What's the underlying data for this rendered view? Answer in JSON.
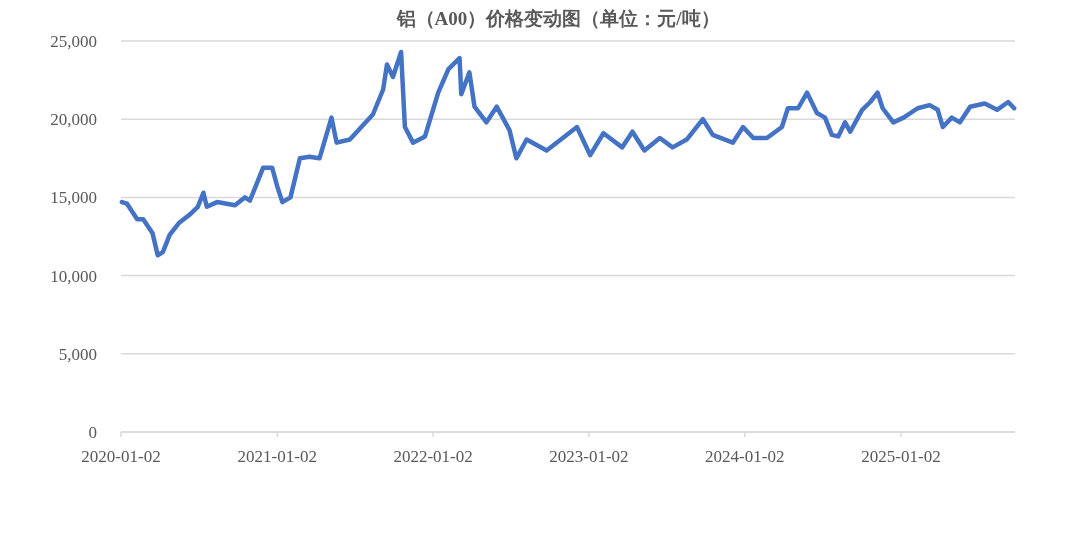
{
  "chart_data": {
    "type": "line",
    "title": "铝（A00）价格变动图（单位：元/吨）",
    "xlim": [
      "2020-01-02",
      "2025-09-26"
    ],
    "xticks": [
      "2020-01-02",
      "2021-01-02",
      "2022-01-02",
      "2023-01-02",
      "2024-01-02",
      "2025-01-02"
    ],
    "ylim": [
      0,
      25000
    ],
    "yticks": [
      {
        "value": 0,
        "label": "0"
      },
      {
        "value": 5000,
        "label": "5,000"
      },
      {
        "value": 10000,
        "label": "10,000"
      },
      {
        "value": 15000,
        "label": "15,000"
      },
      {
        "value": 20000,
        "label": "20,000"
      },
      {
        "value": 25000,
        "label": "25,000"
      }
    ],
    "grid": "y",
    "marker": "none",
    "line_style": "solid",
    "series": [
      {
        "color": "#4472c4",
        "x": [
          "2020-01-04",
          "2020-01-16",
          "2020-02-09",
          "2020-02-23",
          "2020-03-16",
          "2020-03-28",
          "2020-04-09",
          "2020-04-25",
          "2020-05-18",
          "2020-06-11",
          "2020-06-30",
          "2020-07-13",
          "2020-07-21",
          "2020-08-14",
          "2020-09-25",
          "2020-10-18",
          "2020-10-30",
          "2020-11-30",
          "2020-12-21",
          "2021-01-02",
          "2021-01-14",
          "2021-02-02",
          "2021-02-24",
          "2021-03-18",
          "2021-04-11",
          "2021-05-09",
          "2021-05-21",
          "2021-06-21",
          "2021-08-14",
          "2021-09-07",
          "2021-09-16",
          "2021-09-30",
          "2021-10-19",
          "2021-10-28",
          "2021-11-16",
          "2021-12-14",
          "2022-01-14",
          "2022-02-07",
          "2022-03-05",
          "2022-03-09",
          "2022-03-28",
          "2022-04-09",
          "2022-05-07",
          "2022-05-31",
          "2022-06-30",
          "2022-07-16",
          "2022-08-09",
          "2022-09-25",
          "2022-12-05",
          "2023-01-05",
          "2023-02-05",
          "2023-03-21",
          "2023-04-14",
          "2023-05-12",
          "2023-06-17",
          "2023-07-17",
          "2023-08-19",
          "2023-09-26",
          "2023-10-19",
          "2023-12-05",
          "2023-12-29",
          "2024-01-22",
          "2024-02-23",
          "2024-03-29",
          "2024-04-12",
          "2024-05-06",
          "2024-05-27",
          "2024-06-19",
          "2024-07-08",
          "2024-07-24",
          "2024-08-08",
          "2024-08-24",
          "2024-09-05",
          "2024-10-03",
          "2024-10-22",
          "2024-11-08",
          "2024-11-20",
          "2024-12-15",
          "2025-01-08",
          "2025-02-10",
          "2025-03-10",
          "2025-03-29",
          "2025-04-10",
          "2025-05-01",
          "2025-05-20",
          "2025-06-13",
          "2025-07-17",
          "2025-08-15",
          "2025-09-10",
          "2025-09-24"
        ],
        "values": [
          14700,
          14600,
          13600,
          13600,
          12700,
          11300,
          11500,
          12600,
          13400,
          13900,
          14400,
          15300,
          14400,
          14700,
          14500,
          15000,
          14800,
          16900,
          16900,
          15700,
          14700,
          15000,
          17500,
          17600,
          17500,
          20100,
          18500,
          18700,
          20300,
          21900,
          23500,
          22700,
          24300,
          19500,
          18500,
          18900,
          21700,
          23200,
          23900,
          21600,
          23000,
          20800,
          19800,
          20800,
          19300,
          17500,
          18700,
          18000,
          19500,
          17700,
          19100,
          18200,
          19200,
          18000,
          18800,
          18200,
          18700,
          20000,
          19000,
          18500,
          19500,
          18800,
          18800,
          19500,
          20700,
          20700,
          21700,
          20400,
          20100,
          19000,
          18900,
          19800,
          19200,
          20600,
          21100,
          21700,
          20700,
          19800,
          20100,
          20700,
          20900,
          20600,
          19500,
          20100,
          19800,
          20800,
          21000,
          20600,
          21100,
          20700
        ]
      }
    ]
  }
}
